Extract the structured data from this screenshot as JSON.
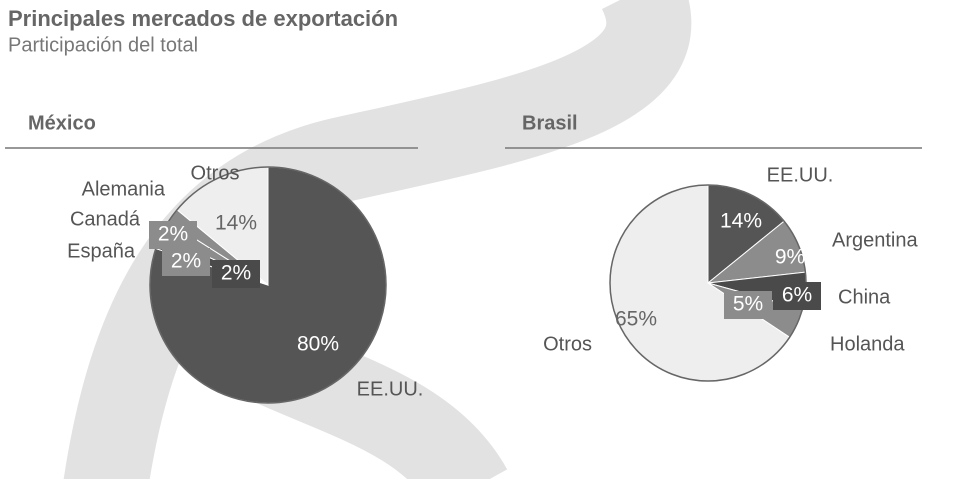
{
  "header": {
    "title": "Principales mercados de exportación",
    "subtitle": "Participación del total"
  },
  "chart_data": [
    {
      "type": "pie",
      "title": "México",
      "categories": [
        "EE.UU.",
        "España",
        "Canadá",
        "Alemania",
        "Otros"
      ],
      "values": [
        80,
        2,
        2,
        2,
        14
      ],
      "value_labels": [
        "80%",
        "2%",
        "2%",
        "2%",
        "14%"
      ],
      "colors": [
        "#555555",
        "#4a4a4a",
        "#8c8c8c",
        "#8c8c8c",
        "#eeeeee"
      ]
    },
    {
      "type": "pie",
      "title": "Brasil",
      "categories": [
        "EE.UU.",
        "Argentina",
        "China",
        "Holanda",
        "Otros"
      ],
      "values": [
        14,
        9,
        6,
        5,
        65
      ],
      "value_labels": [
        "14%",
        "9%",
        "6%",
        "5%",
        "65%"
      ],
      "colors": [
        "#555555",
        "#8c8c8c",
        "#4a4a4a",
        "#8c8c8c",
        "#eeeeee"
      ]
    }
  ]
}
